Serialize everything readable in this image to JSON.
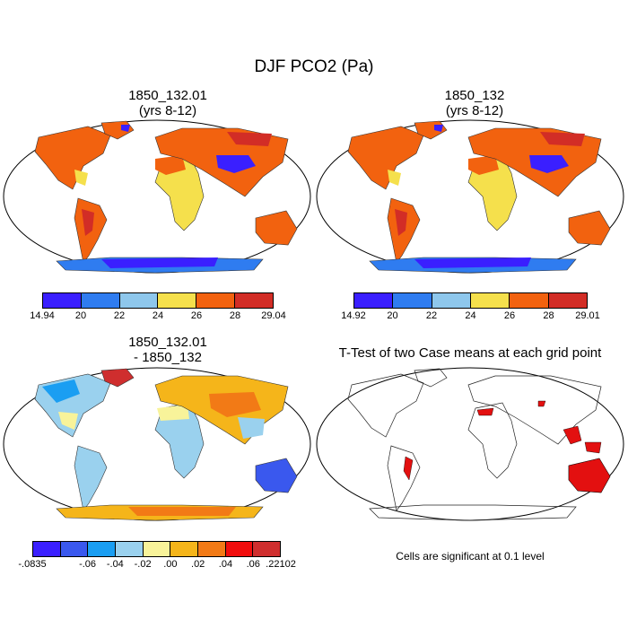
{
  "title": "DJF PCO2 (Pa)",
  "panels": [
    {
      "title_line1": "1850_132.01",
      "title_line2": "(yrs 8-12)",
      "colorbar": {
        "colors": [
          "#3a1fff",
          "#2f7cf0",
          "#8ec7ec",
          "#f5e04c",
          "#f2620f",
          "#d22d26"
        ],
        "labels": [
          "14.94",
          "20",
          "22",
          "24",
          "26",
          "28",
          "29.04"
        ]
      }
    },
    {
      "title_line1": "1850_132",
      "title_line2": "(yrs 8-12)",
      "colorbar": {
        "colors": [
          "#3a1fff",
          "#2f7cf0",
          "#8ec7ec",
          "#f5e04c",
          "#f2620f",
          "#d22d26"
        ],
        "labels": [
          "14.92",
          "20",
          "22",
          "24",
          "26",
          "28",
          "29.01"
        ]
      }
    },
    {
      "title_line1": "1850_132.01",
      "title_line2": "- 1850_132",
      "colorbar": {
        "colors": [
          "#3a1fff",
          "#3a58ee",
          "#1a9ef2",
          "#9ad1ee",
          "#f8f39a",
          "#f5b51a",
          "#f27a16",
          "#f10d0d",
          "#cf2e2e"
        ],
        "labels": [
          "-.0835",
          "",
          "-.06",
          "-.04",
          "-.02",
          ".00",
          ".02",
          ".04",
          ".06",
          ".22102"
        ]
      }
    },
    {
      "title_line1": "T-Test of two Case means at each grid point",
      "note": "Cells are significant at 0.1 level"
    }
  ]
}
